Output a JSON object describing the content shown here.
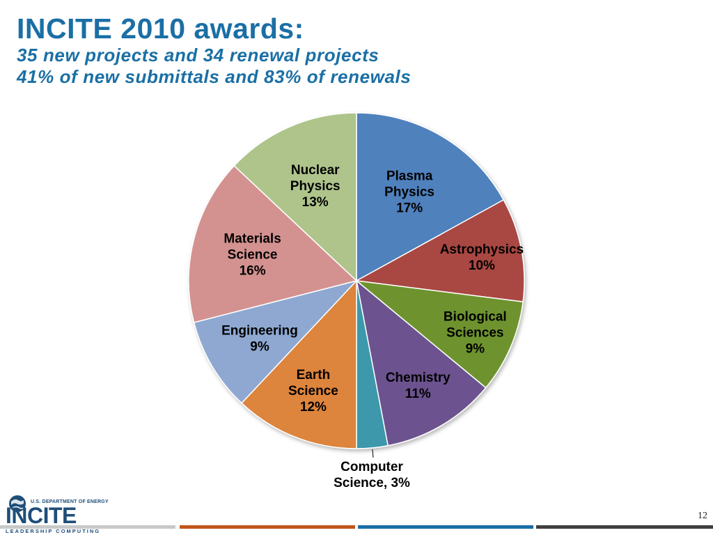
{
  "slide": {
    "title": "INCITE 2010 awards:",
    "subtitle_lines": [
      "35 new projects and 34 renewal projects",
      "41% of new submittals and 83% of renewals"
    ],
    "page_number": "12"
  },
  "colors": {
    "title": "#1a6fa5",
    "subtitle": "#1a6fa5",
    "footer_stripes": [
      "#c9c9c9",
      "#c0561b",
      "#1a6fa5",
      "#3f3f3f"
    ],
    "logo": "#1f4e79"
  },
  "logo": {
    "top_text": "U.S. DEPARTMENT OF ENERGY",
    "wordmark": "INCITE",
    "bottom_text": "LEADERSHIP COMPUTING",
    "icon": "globe-icon"
  },
  "chart_data": {
    "type": "pie",
    "start_angle_deg": 0,
    "direction": "clockwise",
    "legend": "none",
    "slices": [
      {
        "name": "Plasma Physics",
        "value": 17,
        "label_lines": [
          "Plasma",
          "Physics",
          "17%"
        ],
        "color": "#4f81bd"
      },
      {
        "name": "Astrophysics",
        "value": 10,
        "label_lines": [
          "Astrophysics",
          "10%"
        ],
        "color": "#a94643"
      },
      {
        "name": "Biological Sciences",
        "value": 9,
        "label_lines": [
          "Biological",
          "Sciences",
          "9%"
        ],
        "color": "#6e932f"
      },
      {
        "name": "Chemistry",
        "value": 11,
        "label_lines": [
          "Chemistry",
          "11%"
        ],
        "color": "#6c538f"
      },
      {
        "name": "Computer Science",
        "value": 3,
        "label_lines": [
          "Computer",
          "Science, 3%"
        ],
        "color": "#3d98ab",
        "label_outside": true
      },
      {
        "name": "Earth Science",
        "value": 12,
        "label_lines": [
          "Earth",
          "Science",
          "12%"
        ],
        "color": "#dd843c"
      },
      {
        "name": "Engineering",
        "value": 9,
        "label_lines": [
          "Engineering",
          "9%"
        ],
        "color": "#8ea8d1"
      },
      {
        "name": "Materials Science",
        "value": 16,
        "label_lines": [
          "Materials",
          "Science",
          "16%"
        ],
        "color": "#d39290"
      },
      {
        "name": "Nuclear Physics",
        "value": 13,
        "label_lines": [
          "Nuclear",
          "Physics",
          "13%"
        ],
        "color": "#aec48b"
      }
    ]
  }
}
